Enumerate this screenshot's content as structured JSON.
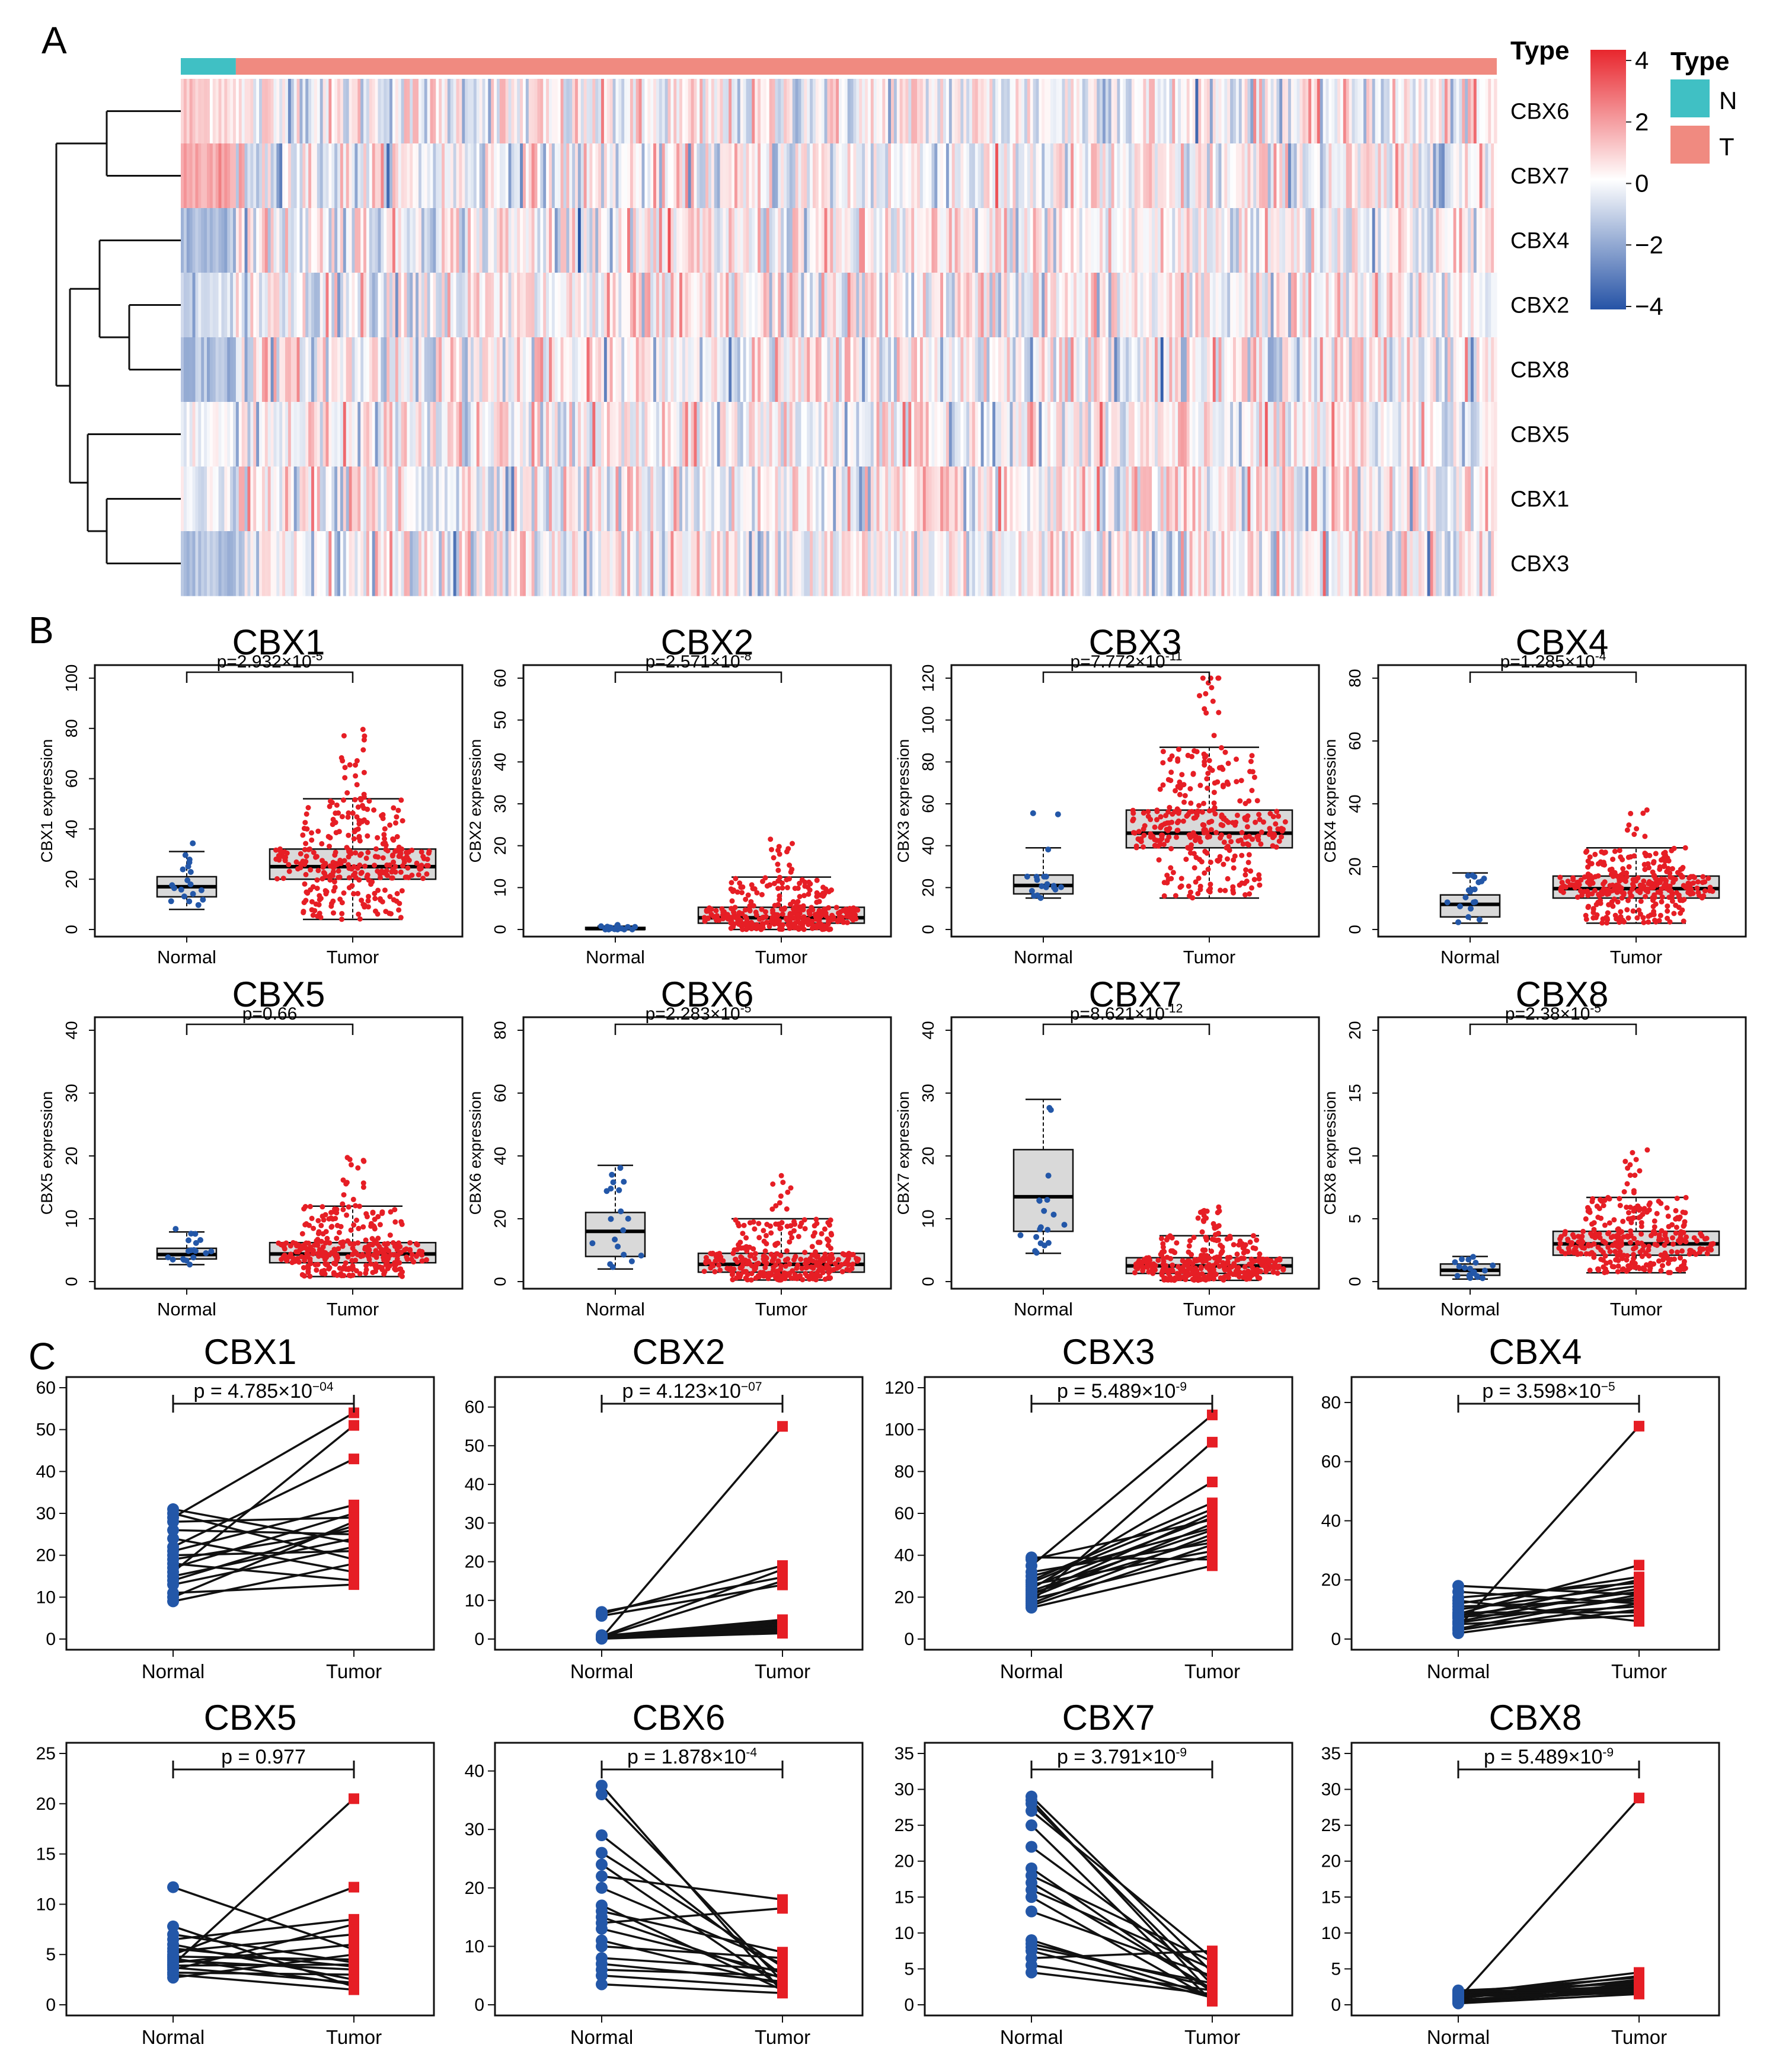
{
  "panels": {
    "a": "A",
    "b": "B",
    "c": "C"
  },
  "colors": {
    "normal_type": "#40c0c4",
    "tumor_type": "#f08a80",
    "heat_high": "#e8262d",
    "heat_mid": "#ffffff",
    "heat_low": "#2653a6",
    "normal_points": "#2357a8",
    "tumor_points": "#e61e25",
    "box_fill": "#d9d9d9",
    "lines": "#111111"
  },
  "heatmap": {
    "legend_title": "Type",
    "scale_ticks": [
      "4",
      "2",
      "0",
      "−2",
      "−4"
    ],
    "legend_items": [
      {
        "label": "N"
      },
      {
        "label": "T"
      }
    ]
  },
  "chart_data": [
    {
      "type": "heatmap",
      "panel": "A",
      "rows": [
        "CBX6",
        "CBX7",
        "CBX4",
        "CBX2",
        "CBX8",
        "CBX5",
        "CBX1",
        "CBX3"
      ],
      "column_groups": [
        {
          "name": "N",
          "count": 19
        },
        {
          "name": "T",
          "count": 435
        }
      ],
      "color_range": [
        -4,
        4
      ],
      "row_means_normal": [
        0.9,
        1.6,
        -1.4,
        -1.0,
        -1.5,
        -0.2,
        -0.5,
        -1.6
      ],
      "row_means_tumor": [
        -0.05,
        -0.1,
        0.05,
        0.04,
        0.06,
        0.01,
        0.02,
        0.06
      ]
    },
    {
      "type": "box",
      "panel": "B",
      "gene": "CBX1",
      "title": "CBX1",
      "ylabel": "CBX1 expression",
      "p_label": "p=2.932×10",
      "p_exp": "-5",
      "xcategories": [
        "Normal",
        "Tumor"
      ],
      "ylim": [
        0,
        100
      ],
      "yticks": [
        "0",
        "20",
        "40",
        "60",
        "80",
        "100"
      ],
      "normal": {
        "q1": 13,
        "median": 17,
        "q3": 21,
        "whisker_low": 8,
        "whisker_high": 31
      },
      "tumor": {
        "q1": 20,
        "median": 25,
        "q3": 32,
        "whisker_low": 4,
        "whisker_high": 52
      }
    },
    {
      "type": "box",
      "panel": "B",
      "gene": "CBX2",
      "title": "CBX2",
      "ylabel": "CBX2 expression",
      "p_label": "p=2.571×10",
      "p_exp": "-8",
      "xcategories": [
        "Normal",
        "Tumor"
      ],
      "ylim": [
        0,
        60
      ],
      "yticks": [
        "0",
        "10",
        "20",
        "30",
        "40",
        "50",
        "60"
      ],
      "normal": {
        "q1": 0,
        "median": 0.2,
        "q3": 0.5,
        "whisker_low": 0,
        "whisker_high": 0.8
      },
      "tumor": {
        "q1": 1.5,
        "median": 2.8,
        "q3": 5.3,
        "whisker_low": 0,
        "whisker_high": 12.5
      }
    },
    {
      "type": "box",
      "panel": "B",
      "gene": "CBX3",
      "title": "CBX3",
      "ylabel": "CBX3 expression",
      "p_label": "p=7.772×10",
      "p_exp": "-11",
      "xcategories": [
        "Normal",
        "Tumor"
      ],
      "ylim": [
        0,
        120
      ],
      "yticks": [
        "0",
        "20",
        "40",
        "60",
        "80",
        "100",
        "120"
      ],
      "normal": {
        "q1": 17,
        "median": 21,
        "q3": 26,
        "whisker_low": 15,
        "whisker_high": 39
      },
      "tumor": {
        "q1": 39,
        "median": 46,
        "q3": 57,
        "whisker_low": 15,
        "whisker_high": 87
      }
    },
    {
      "type": "box",
      "panel": "B",
      "gene": "CBX4",
      "title": "CBX4",
      "ylabel": "CBX4 expression",
      "p_label": "p=1.285×10",
      "p_exp": "-4",
      "xcategories": [
        "Normal",
        "Tumor"
      ],
      "ylim": [
        0,
        80
      ],
      "yticks": [
        "0",
        "20",
        "40",
        "60",
        "80"
      ],
      "normal": {
        "q1": 4,
        "median": 8,
        "q3": 11,
        "whisker_low": 2,
        "whisker_high": 18
      },
      "tumor": {
        "q1": 10,
        "median": 13,
        "q3": 17,
        "whisker_low": 2,
        "whisker_high": 26
      }
    },
    {
      "type": "box",
      "panel": "B",
      "gene": "CBX5",
      "title": "CBX5",
      "ylabel": "CBX5 expression",
      "p_label": "p=0.66",
      "p_exp": "",
      "xcategories": [
        "Normal",
        "Tumor"
      ],
      "ylim": [
        0,
        40
      ],
      "yticks": [
        "0",
        "10",
        "20",
        "30",
        "40"
      ],
      "normal": {
        "q1": 3.6,
        "median": 4.3,
        "q3": 5.3,
        "whisker_low": 2.7,
        "whisker_high": 7.9
      },
      "tumor": {
        "q1": 3,
        "median": 4.4,
        "q3": 6.2,
        "whisker_low": 0.8,
        "whisker_high": 12
      }
    },
    {
      "type": "box",
      "panel": "B",
      "gene": "CBX6",
      "title": "CBX6",
      "ylabel": "CBX6 expression",
      "p_label": "p=2.283×10",
      "p_exp": "-5",
      "xcategories": [
        "Normal",
        "Tumor"
      ],
      "ylim": [
        0,
        80
      ],
      "yticks": [
        "0",
        "20",
        "40",
        "60",
        "80"
      ],
      "normal": {
        "q1": 8,
        "median": 16,
        "q3": 22,
        "whisker_low": 4,
        "whisker_high": 37
      },
      "tumor": {
        "q1": 3,
        "median": 5.5,
        "q3": 9,
        "whisker_low": 0.5,
        "whisker_high": 20
      }
    },
    {
      "type": "box",
      "panel": "B",
      "gene": "CBX7",
      "title": "CBX7",
      "ylabel": "CBX7 expression",
      "p_label": "p=8.621×10",
      "p_exp": "-12",
      "xcategories": [
        "Normal",
        "Tumor"
      ],
      "ylim": [
        0,
        40
      ],
      "yticks": [
        "0",
        "10",
        "20",
        "30",
        "40"
      ],
      "normal": {
        "q1": 8,
        "median": 13.5,
        "q3": 21,
        "whisker_low": 4.5,
        "whisker_high": 29
      },
      "tumor": {
        "q1": 1.3,
        "median": 2.5,
        "q3": 3.8,
        "whisker_low": 0.2,
        "whisker_high": 7.3
      }
    },
    {
      "type": "box",
      "panel": "B",
      "gene": "CBX8",
      "title": "CBX8",
      "ylabel": "CBX8 expression",
      "p_label": "p=2.38×10",
      "p_exp": "-5",
      "xcategories": [
        "Normal",
        "Tumor"
      ],
      "ylim": [
        0,
        20
      ],
      "yticks": [
        "0",
        "5",
        "10",
        "15",
        "20"
      ],
      "normal": {
        "q1": 0.5,
        "median": 0.9,
        "q3": 1.4,
        "whisker_low": 0.2,
        "whisker_high": 2
      },
      "tumor": {
        "q1": 2.1,
        "median": 3,
        "q3": 4,
        "whisker_low": 0.7,
        "whisker_high": 6.7
      }
    },
    {
      "type": "paired",
      "panel": "C",
      "gene": "CBX1",
      "title": "CBX1",
      "p_label": "p = 4.785×10",
      "p_exp": "−04",
      "xcategories": [
        "Normal",
        "Tumor"
      ],
      "ylim": [
        0,
        60
      ],
      "yticks": [
        "0",
        "10",
        "20",
        "30",
        "40",
        "50",
        "60"
      ],
      "normal": [
        9,
        10,
        11,
        13,
        14,
        15,
        16,
        17,
        18,
        19,
        20,
        21,
        22,
        24,
        26,
        28,
        29,
        30,
        31
      ],
      "tumor": [
        18,
        28,
        13,
        22,
        27,
        24,
        51,
        30,
        14,
        26,
        21,
        32,
        43,
        16,
        25,
        29,
        54,
        19,
        23
      ]
    },
    {
      "type": "paired",
      "panel": "C",
      "gene": "CBX2",
      "title": "CBX2",
      "p_label": "p = 4.123×10",
      "p_exp": "−07",
      "xcategories": [
        "Normal",
        "Tumor"
      ],
      "ylim": [
        0,
        65
      ],
      "yticks": [
        "0",
        "10",
        "20",
        "30",
        "40",
        "50",
        "60"
      ],
      "normal": [
        0.1,
        0.1,
        0.2,
        0.2,
        0.2,
        0.3,
        0.3,
        0.3,
        0.4,
        0.4,
        0.5,
        0.5,
        0.6,
        0.7,
        0.8,
        1.0,
        6.0,
        6.5,
        7.0
      ],
      "tumor": [
        1.5,
        2.0,
        2.5,
        3.0,
        3.5,
        1.8,
        2.2,
        55,
        4.0,
        4.5,
        15,
        2.8,
        3.2,
        18,
        5,
        3,
        14,
        19,
        16
      ]
    },
    {
      "type": "paired",
      "panel": "C",
      "gene": "CBX3",
      "title": "CBX3",
      "p_label": "p = 5.489×10",
      "p_exp": "-9",
      "xcategories": [
        "Normal",
        "Tumor"
      ],
      "ylim": [
        0,
        120
      ],
      "yticks": [
        "0",
        "20",
        "40",
        "60",
        "80",
        "100",
        "120"
      ],
      "normal": [
        15,
        16,
        17,
        18,
        19,
        20,
        21,
        22,
        23,
        24,
        25,
        26,
        27,
        28,
        30,
        32,
        35,
        38,
        39
      ],
      "tumor": [
        35,
        45,
        50,
        94,
        40,
        55,
        60,
        48,
        52,
        75,
        58,
        42,
        62,
        65,
        53,
        46,
        107,
        57,
        38
      ]
    },
    {
      "type": "paired",
      "panel": "C",
      "gene": "CBX4",
      "title": "CBX4",
      "p_label": "p = 3.598×10",
      "p_exp": "−5",
      "xcategories": [
        "Normal",
        "Tumor"
      ],
      "ylim": [
        0,
        85
      ],
      "yticks": [
        "0",
        "20",
        "40",
        "60",
        "80"
      ],
      "normal": [
        2,
        3,
        3.5,
        4,
        5,
        5.5,
        6,
        7,
        7.5,
        8,
        8.5,
        9,
        10,
        11,
        12,
        13,
        14,
        16,
        18
      ],
      "tumor": [
        10,
        12,
        15,
        72,
        8,
        14,
        17,
        20,
        11,
        16,
        25,
        9,
        18,
        13,
        21,
        6,
        19,
        12,
        15
      ]
    },
    {
      "type": "paired",
      "panel": "C",
      "gene": "CBX5",
      "title": "CBX5",
      "p_label": "p = 0.977",
      "p_exp": "",
      "xcategories": [
        "Normal",
        "Tumor"
      ],
      "ylim": [
        0,
        25
      ],
      "yticks": [
        "0",
        "5",
        "10",
        "15",
        "20",
        "25"
      ],
      "normal": [
        2.7,
        3.0,
        3.2,
        3.5,
        3.7,
        3.9,
        4.0,
        4.2,
        4.4,
        4.6,
        4.8,
        5.0,
        5.3,
        5.6,
        6.0,
        6.5,
        7.0,
        7.8,
        11.7
      ],
      "tumor": [
        5.0,
        1.5,
        3.0,
        8.0,
        2.2,
        4.0,
        20.5,
        6.0,
        3.5,
        2.0,
        4.5,
        11.7,
        7.0,
        3.8,
        2.5,
        8.5,
        4.2,
        1.8,
        5.5
      ]
    },
    {
      "type": "paired",
      "panel": "C",
      "gene": "CBX6",
      "title": "CBX6",
      "p_label": "p = 1.878×10",
      "p_exp": "-4",
      "xcategories": [
        "Normal",
        "Tumor"
      ],
      "ylim": [
        0,
        43
      ],
      "yticks": [
        "0",
        "10",
        "20",
        "30",
        "40"
      ],
      "normal": [
        3.5,
        5,
        6,
        7,
        8,
        10,
        11,
        13,
        14,
        15,
        16,
        17,
        20,
        22,
        24,
        26,
        29,
        36,
        37.5
      ],
      "tumor": [
        2,
        3,
        5,
        4,
        6,
        8,
        3.5,
        5.5,
        16.5,
        4.5,
        9,
        2.5,
        7,
        18,
        3,
        6.5,
        5,
        4,
        2.2
      ]
    },
    {
      "type": "paired",
      "panel": "C",
      "gene": "CBX7",
      "title": "CBX7",
      "p_label": "p = 3.791×10",
      "p_exp": "-9",
      "xcategories": [
        "Normal",
        "Tumor"
      ],
      "ylim": [
        0,
        35
      ],
      "yticks": [
        "0",
        "5",
        "10",
        "15",
        "20",
        "25",
        "30",
        "35"
      ],
      "normal": [
        4.5,
        5.5,
        6.5,
        7.5,
        8,
        8.5,
        9,
        13,
        15,
        16,
        17,
        18,
        19,
        22,
        25,
        27,
        28,
        28.5,
        29
      ],
      "tumor": [
        1.5,
        2,
        7.5,
        1,
        3,
        2.5,
        1.2,
        4,
        0.8,
        5,
        2.2,
        6,
        1.8,
        3.5,
        0.5,
        6.5,
        2.8,
        1.5,
        4.5
      ]
    },
    {
      "type": "paired",
      "panel": "C",
      "gene": "CBX8",
      "title": "CBX8",
      "p_label": "p = 5.489×10",
      "p_exp": "-9",
      "xcategories": [
        "Normal",
        "Tumor"
      ],
      "ylim": [
        0,
        35
      ],
      "yticks": [
        "0",
        "5",
        "10",
        "15",
        "20",
        "25",
        "30",
        "35"
      ],
      "normal": [
        0.2,
        0.3,
        0.4,
        0.5,
        0.6,
        0.7,
        0.8,
        0.9,
        1.0,
        1.1,
        1.2,
        1.3,
        1.4,
        1.5,
        1.6,
        1.7,
        1.8,
        1.9,
        2.0
      ],
      "tumor": [
        1.5,
        2,
        2.5,
        3,
        1.8,
        2.2,
        28.8,
        3.5,
        2.8,
        4,
        1.6,
        2.4,
        3.2,
        4.5,
        2.6,
        1.9,
        3.8,
        2.1,
        3.0
      ]
    }
  ]
}
